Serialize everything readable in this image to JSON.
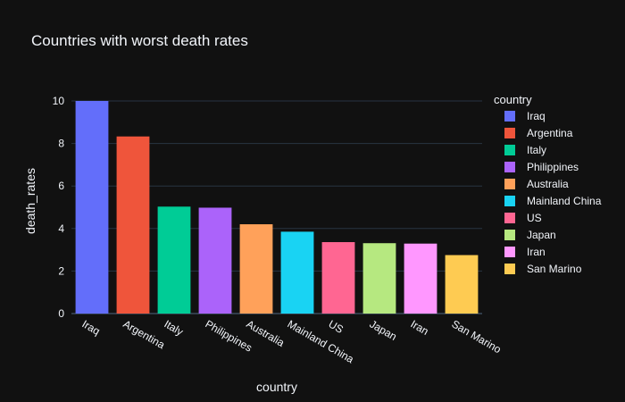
{
  "chart_data": {
    "type": "bar",
    "title": "Countries with worst death rates",
    "xlabel": "country",
    "ylabel": "death_rates",
    "ylim": [
      0,
      10
    ],
    "yticks": [
      0,
      2,
      4,
      6,
      8,
      10
    ],
    "grid": true,
    "legend_title": "country",
    "legend_position": "right",
    "categories": [
      "Iraq",
      "Argentina",
      "Italy",
      "Philippines",
      "Australia",
      "Mainland China",
      "US",
      "Japan",
      "Iran",
      "San Marino"
    ],
    "values": [
      10.0,
      8.33,
      5.03,
      4.98,
      4.2,
      3.85,
      3.36,
      3.31,
      3.29,
      2.75
    ],
    "colors": [
      "#636efa",
      "#EF553B",
      "#00cc96",
      "#ab63fa",
      "#FFA15A",
      "#19d3f3",
      "#FF6692",
      "#B6E880",
      "#FF97FF",
      "#FECB52"
    ]
  }
}
